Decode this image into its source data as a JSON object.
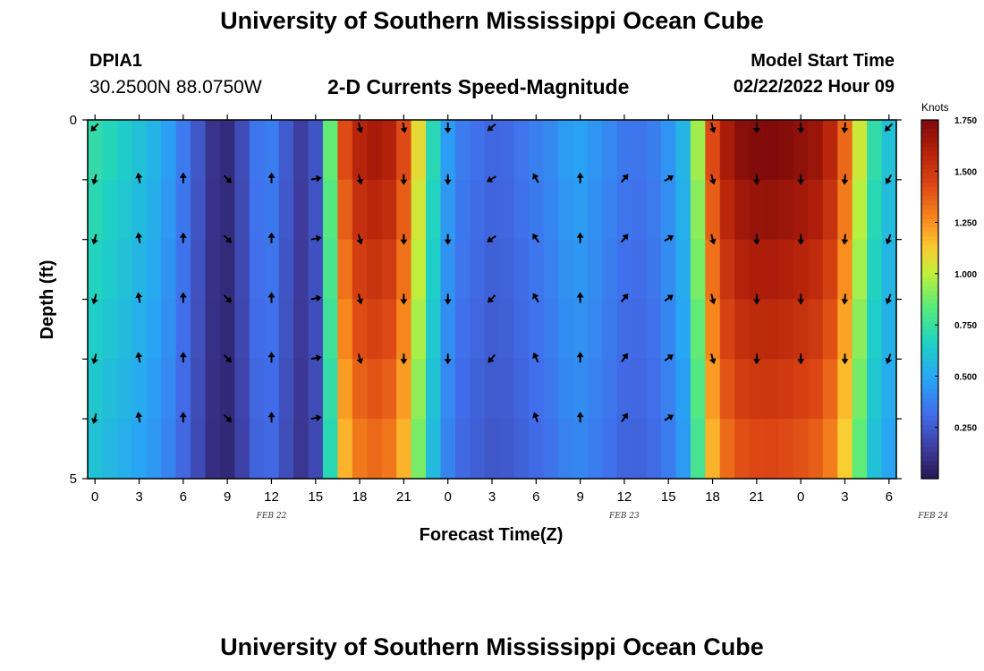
{
  "page": {
    "title": "University of Southern Mississippi Ocean Cube",
    "title_repeat": "University of Southern Mississippi Ocean Cube",
    "station_id": "DPIA1",
    "station_coords": "30.2500N  88.0750W",
    "chart_subtitle": "2-D Currents Speed-Magnitude",
    "model_start_label": "Model Start Time",
    "model_start_value": "02/22/2022 Hour 09"
  },
  "chart_data": {
    "type": "heatmap",
    "title": "2-D Currents Speed-Magnitude",
    "xlabel": "Forecast Time(Z)",
    "ylabel": "Depth (ft)",
    "colorbar_label": "Knots",
    "colorbar_ticks": [
      "1.750",
      "1.500",
      "1.250",
      "1.000",
      "0.750",
      "0.500",
      "0.250"
    ],
    "colorbar_range": [
      0.0,
      1.75
    ],
    "x_tick_labels": [
      "0",
      "3",
      "6",
      "9",
      "12",
      "15",
      "18",
      "21",
      "0",
      "3",
      "6",
      "9",
      "12",
      "15",
      "18",
      "21",
      "0",
      "3",
      "6"
    ],
    "date_labels": [
      {
        "label": "FEB 22",
        "hour_index": 12
      },
      {
        "label": "FEB 23",
        "hour_index": 36
      },
      {
        "label": "FEB 24",
        "hour_index": 57
      }
    ],
    "y_tick_labels": [
      "0",
      "5"
    ],
    "depth_levels": 6,
    "hours": 55,
    "speed_profile_knots": [
      [
        0,
        0.75
      ],
      [
        3,
        0.62
      ],
      [
        5,
        0.52
      ],
      [
        7,
        0.3
      ],
      [
        9,
        0.05
      ],
      [
        10,
        0.12
      ],
      [
        11,
        0.28
      ],
      [
        12,
        0.4
      ],
      [
        13,
        0.32
      ],
      [
        14,
        0.18
      ],
      [
        15,
        0.12
      ],
      [
        15.8,
        0.3
      ],
      [
        16.5,
        0.85
      ],
      [
        17,
        1.3
      ],
      [
        18,
        1.55
      ],
      [
        19,
        1.62
      ],
      [
        20,
        1.64
      ],
      [
        21,
        1.55
      ],
      [
        22,
        1.3
      ],
      [
        23,
        0.85
      ],
      [
        24,
        0.55
      ],
      [
        25,
        0.38
      ],
      [
        27,
        0.3
      ],
      [
        28,
        0.28
      ],
      [
        30,
        0.35
      ],
      [
        32,
        0.42
      ],
      [
        33,
        0.5
      ],
      [
        35,
        0.42
      ],
      [
        37,
        0.32
      ],
      [
        39,
        0.38
      ],
      [
        40.5,
        0.55
      ],
      [
        41.5,
        0.95
      ],
      [
        42,
        1.3
      ],
      [
        43,
        1.55
      ],
      [
        44,
        1.7
      ],
      [
        46,
        1.75
      ],
      [
        48,
        1.72
      ],
      [
        50,
        1.65
      ],
      [
        51,
        1.5
      ],
      [
        52,
        1.2
      ],
      [
        53,
        0.85
      ],
      [
        54,
        0.6
      ]
    ],
    "arrow_columns": [
      {
        "hour": 0,
        "dirs": [
          "225",
          "195",
          "195",
          "195",
          "195",
          "195"
        ]
      },
      {
        "hour": 3,
        "dirs": null,
        "dir_deep": "350"
      },
      {
        "hour": 6,
        "dirs": null,
        "dir_deep": "0"
      },
      {
        "hour": 9,
        "dirs": null,
        "dir_deep": "135"
      },
      {
        "hour": 12,
        "dirs": null,
        "dir_deep": "0"
      },
      {
        "hour": 15,
        "dirs": null,
        "dir_deep": "80"
      },
      {
        "hour": 18,
        "dirs": [
          "165",
          "165",
          "165",
          "165",
          "165",
          "none"
        ]
      },
      {
        "hour": 21,
        "dirs": [
          "170",
          "180",
          "180",
          "180",
          "180",
          "none"
        ]
      },
      {
        "hour": 24,
        "dirs": [
          "180",
          "180",
          "180",
          "180",
          "180",
          "none"
        ]
      },
      {
        "hour": 27,
        "dirs": [
          "230",
          "240",
          "235",
          "225",
          "220",
          "none"
        ]
      },
      {
        "hour": 30,
        "dirs": [
          "none",
          "330",
          "325",
          "330",
          "335",
          "340"
        ]
      },
      {
        "hour": 33,
        "dirs": [
          "none",
          "0",
          "0",
          "0",
          "0",
          "0"
        ]
      },
      {
        "hour": 36,
        "dirs": [
          "none",
          "40",
          "40",
          "40",
          "35",
          "35"
        ]
      },
      {
        "hour": 39,
        "dirs": [
          "none",
          "60",
          "60",
          "55",
          "55",
          "60"
        ]
      },
      {
        "hour": 42,
        "dirs": [
          "165",
          "165",
          "165",
          "165",
          "165",
          "none"
        ]
      },
      {
        "hour": 45,
        "dirs": [
          "180",
          "180",
          "180",
          "180",
          "180",
          "none"
        ]
      },
      {
        "hour": 48,
        "dirs": [
          "180",
          "180",
          "180",
          "180",
          "180",
          "none"
        ]
      },
      {
        "hour": 51,
        "dirs": [
          "185",
          "185",
          "185",
          "185",
          "180",
          "none"
        ]
      },
      {
        "hour": 54,
        "dirs": [
          "225",
          "210",
          "200",
          "200",
          "200",
          "none"
        ]
      }
    ]
  }
}
